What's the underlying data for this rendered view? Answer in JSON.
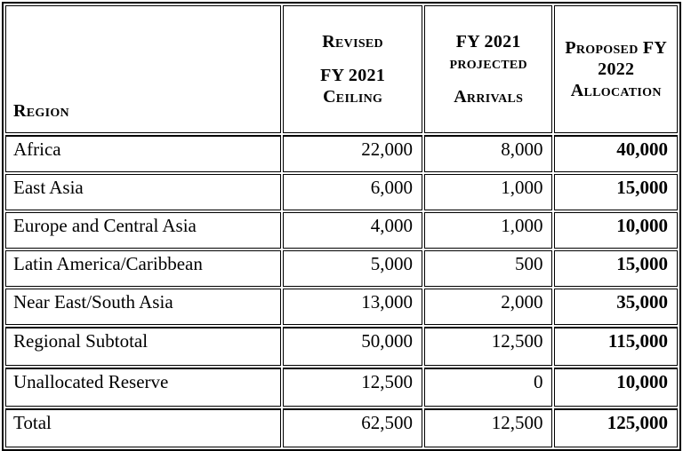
{
  "table": {
    "header": {
      "region_label": "Region",
      "revised_ceiling_lines": [
        "Revised",
        "FY 2021",
        "Ceiling"
      ],
      "projected_arrivals_lines": [
        "FY 2021",
        "projected",
        "Arrivals"
      ],
      "proposed_allocation_lines": [
        "Proposed FY",
        "2022",
        "Allocation"
      ]
    },
    "rows": [
      {
        "region": "Africa",
        "ceiling": "22,000",
        "arrivals": "8,000",
        "allocation": "40,000"
      },
      {
        "region": "East Asia",
        "ceiling": "6,000",
        "arrivals": "1,000",
        "allocation": "15,000"
      },
      {
        "region": "Europe and Central Asia",
        "ceiling": "4,000",
        "arrivals": "1,000",
        "allocation": "10,000"
      },
      {
        "region": "Latin America/Caribbean",
        "ceiling": "5,000",
        "arrivals": "500",
        "allocation": "15,000"
      },
      {
        "region": "Near East/South Asia",
        "ceiling": "13,000",
        "arrivals": "2,000",
        "allocation": "35,000"
      },
      {
        "region": "Regional Subtotal",
        "ceiling": "50,000",
        "arrivals": "12,500",
        "allocation": "115,000"
      },
      {
        "region": "Unallocated Reserve",
        "ceiling": "12,500",
        "arrivals": "0",
        "allocation": "10,000"
      },
      {
        "region": "Total",
        "ceiling": "62,500",
        "arrivals": "12,500",
        "allocation": "125,000"
      }
    ]
  },
  "colors": {
    "border": "#000000",
    "text": "#000000",
    "background": "#ffffff"
  }
}
